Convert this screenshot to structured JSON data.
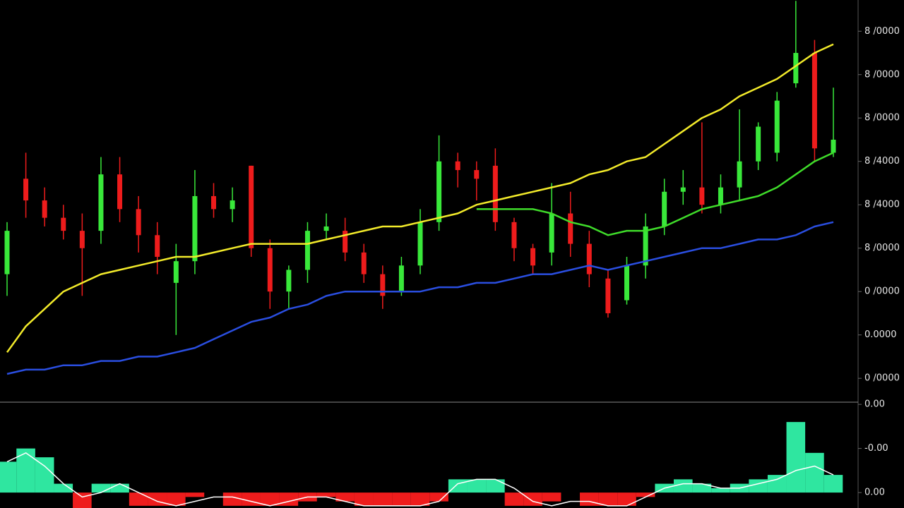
{
  "chart_data": [
    {
      "type": "candlestick",
      "up_color": "#39e83a",
      "down_color": "#ee1c1c",
      "open": [
        2.4,
        4.6,
        4.1,
        3.7,
        3.4,
        3.4,
        4.7,
        3.9,
        3.3,
        2.2,
        2.7,
        4.2,
        3.9,
        4.9,
        3.0,
        2.0,
        2.5,
        3.4,
        3.4,
        2.9,
        2.4,
        2.0,
        2.6,
        3.6,
        5.0,
        4.8,
        4.9,
        3.6,
        3.0,
        2.9,
        3.8,
        3.1,
        2.3,
        1.8,
        2.6,
        3.5,
        4.3,
        4.4,
        4.0,
        4.4,
        5.0,
        5.2,
        6.8,
        7.5,
        5.2
      ],
      "high": [
        3.6,
        5.2,
        4.4,
        4.0,
        3.8,
        5.1,
        5.1,
        4.2,
        3.6,
        3.1,
        4.8,
        4.5,
        4.4,
        4.9,
        3.2,
        2.6,
        3.6,
        3.8,
        3.7,
        3.1,
        2.6,
        2.8,
        3.9,
        5.6,
        5.2,
        5.0,
        5.3,
        3.7,
        3.1,
        4.5,
        4.3,
        3.4,
        2.5,
        2.8,
        3.8,
        4.6,
        4.8,
        5.9,
        4.7,
        6.2,
        5.9,
        6.6,
        8.7,
        7.8,
        6.7
      ],
      "low": [
        1.9,
        3.7,
        3.5,
        3.2,
        1.9,
        3.1,
        3.6,
        2.9,
        2.4,
        1.0,
        2.4,
        3.7,
        3.6,
        2.8,
        1.6,
        1.6,
        2.2,
        3.2,
        2.7,
        2.2,
        1.6,
        1.9,
        2.4,
        3.4,
        4.4,
        4.1,
        3.4,
        2.7,
        2.4,
        2.6,
        2.8,
        2.1,
        1.4,
        1.7,
        2.3,
        3.3,
        4.0,
        3.8,
        3.8,
        4.1,
        4.8,
        5.0,
        6.7,
        5.0,
        5.1
      ],
      "close": [
        3.4,
        4.1,
        3.7,
        3.4,
        3.0,
        4.7,
        3.9,
        3.3,
        2.8,
        2.7,
        4.2,
        3.9,
        4.1,
        3.0,
        2.0,
        2.5,
        3.4,
        3.5,
        2.9,
        2.4,
        1.9,
        2.6,
        3.6,
        5.0,
        4.8,
        4.6,
        3.6,
        3.0,
        2.6,
        3.8,
        3.1,
        2.4,
        1.5,
        2.6,
        3.5,
        4.3,
        4.4,
        4.0,
        4.4,
        5.0,
        5.8,
        6.4,
        7.5,
        5.3,
        5.5
      ],
      "overlays": [
        {
          "color": "#f2ea2a",
          "values": [
            0.6,
            1.2,
            1.6,
            2.0,
            2.2,
            2.4,
            2.5,
            2.6,
            2.7,
            2.8,
            2.8,
            2.9,
            3.0,
            3.1,
            3.1,
            3.1,
            3.1,
            3.2,
            3.3,
            3.4,
            3.5,
            3.5,
            3.6,
            3.7,
            3.8,
            4.0,
            4.1,
            4.2,
            4.3,
            4.4,
            4.5,
            4.7,
            4.8,
            5.0,
            5.1,
            5.4,
            5.7,
            6.0,
            6.2,
            6.5,
            6.7,
            6.9,
            7.2,
            7.5,
            7.7
          ]
        },
        {
          "color": "#3fdc2a",
          "values": [
            null,
            null,
            null,
            null,
            null,
            null,
            null,
            null,
            null,
            null,
            null,
            null,
            null,
            null,
            null,
            null,
            null,
            null,
            null,
            null,
            null,
            null,
            null,
            null,
            null,
            3.9,
            3.9,
            3.9,
            3.9,
            3.8,
            3.6,
            3.5,
            3.3,
            3.4,
            3.4,
            3.5,
            3.7,
            3.9,
            4.0,
            4.1,
            4.2,
            4.4,
            4.7,
            5.0,
            5.2
          ]
        },
        {
          "color": "#2a4ee0",
          "values": [
            0.1,
            0.2,
            0.2,
            0.3,
            0.3,
            0.4,
            0.4,
            0.5,
            0.5,
            0.6,
            0.7,
            0.9,
            1.1,
            1.3,
            1.4,
            1.6,
            1.7,
            1.9,
            2.0,
            2.0,
            2.0,
            2.0,
            2.0,
            2.1,
            2.1,
            2.2,
            2.2,
            2.3,
            2.4,
            2.4,
            2.5,
            2.6,
            2.5,
            2.6,
            2.7,
            2.8,
            2.9,
            3.0,
            3.0,
            3.1,
            3.2,
            3.2,
            3.3,
            3.5,
            3.6
          ]
        }
      ],
      "ylim": [
        -0.55,
        8.72
      ],
      "yticks": [
        {
          "value": 0,
          "label": "0 /0000"
        },
        {
          "value": 1,
          "label": "0.0000"
        },
        {
          "value": 2,
          "label": "0 /0000"
        },
        {
          "value": 3,
          "label": "8 /0000"
        },
        {
          "value": 4,
          "label": "8 /4000"
        },
        {
          "value": 5,
          "label": "8 /4000"
        },
        {
          "value": 6,
          "label": "8 /0000"
        },
        {
          "value": 7,
          "label": "8 /0000"
        },
        {
          "value": 8,
          "label": "8 /0000"
        }
      ]
    },
    {
      "type": "bar",
      "up_color": "#2fe6a0",
      "down_color": "#ee1c1c",
      "values": [
        0.7,
        1.0,
        0.8,
        0.2,
        -0.35,
        0.2,
        0.2,
        -0.3,
        -0.3,
        -0.3,
        -0.1,
        0.0,
        -0.3,
        -0.3,
        -0.3,
        -0.3,
        -0.2,
        -0.1,
        -0.2,
        -0.3,
        -0.3,
        -0.3,
        -0.3,
        -0.2,
        0.3,
        0.3,
        0.3,
        -0.3,
        -0.3,
        -0.2,
        0.0,
        -0.3,
        -0.3,
        -0.3,
        -0.1,
        0.2,
        0.3,
        0.2,
        0.1,
        0.2,
        0.3,
        0.4,
        1.6,
        0.9,
        0.4
      ],
      "line": {
        "color": "#ffffff",
        "values": [
          0.7,
          0.9,
          0.6,
          0.2,
          -0.1,
          0.0,
          0.2,
          0.0,
          -0.2,
          -0.3,
          -0.2,
          -0.1,
          -0.1,
          -0.2,
          -0.3,
          -0.2,
          -0.1,
          -0.1,
          -0.2,
          -0.3,
          -0.3,
          -0.3,
          -0.3,
          -0.2,
          0.2,
          0.3,
          0.3,
          0.1,
          -0.2,
          -0.3,
          -0.2,
          -0.2,
          -0.3,
          -0.3,
          -0.1,
          0.1,
          0.2,
          0.2,
          0.1,
          0.1,
          0.2,
          0.3,
          0.5,
          0.6,
          0.4
        ]
      },
      "ylim": [
        -0.35,
        2.05
      ],
      "yticks": [
        {
          "value": 0,
          "label": "0.00"
        },
        {
          "value": 1,
          "label": "-0.00"
        },
        {
          "value": 2,
          "label": "0.00"
        }
      ]
    }
  ]
}
